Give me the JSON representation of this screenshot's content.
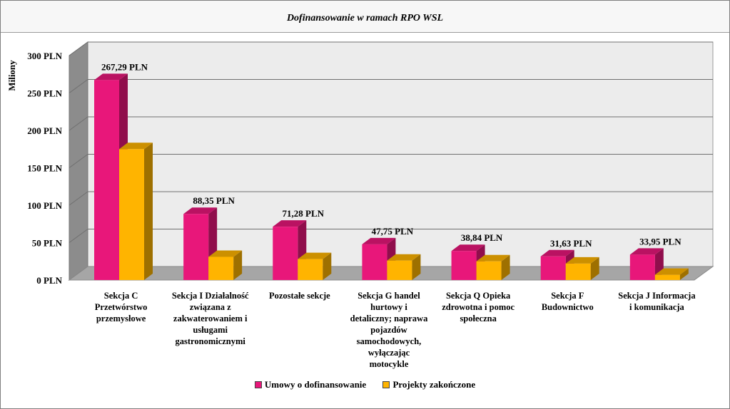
{
  "chart_data": {
    "type": "bar",
    "title": "Dofinansowanie w ramach RPO WSL",
    "ylabel": "Miliony",
    "xlabel": "",
    "ylim": [
      0,
      300
    ],
    "yticks": [
      0,
      50,
      100,
      150,
      200,
      250,
      300
    ],
    "ytick_labels": [
      "0 PLN",
      "50 PLN",
      "100 PLN",
      "150 PLN",
      "200 PLN",
      "250 PLN",
      "300 PLN"
    ],
    "grid": true,
    "legend_position": "bottom",
    "categories": [
      [
        "Sekcja C",
        "Przetwórstwo",
        "przemysłowe"
      ],
      [
        "Sekcja I Działalność",
        "związana z",
        "zakwaterowaniem i",
        "usługami",
        "gastronomicznymi"
      ],
      [
        "Pozostałe sekcje"
      ],
      [
        "Sekcja G handel",
        "hurtowy i",
        "detaliczny; naprawa",
        "pojazdów",
        "samochodowych,",
        "wyłączając",
        "motocykle"
      ],
      [
        "Sekcja Q Opieka",
        "zdrowotna i pomoc",
        "społeczna"
      ],
      [
        "Sekcja F",
        "Budownictwo"
      ],
      [
        "Sekcja J Informacja",
        "i komunikacja"
      ]
    ],
    "series": [
      {
        "name": "Umowy o dofinansowanie",
        "color": "#e8177a",
        "values": [
          267.29,
          88.35,
          71.28,
          47.75,
          38.84,
          31.63,
          33.95
        ],
        "data_labels": [
          "267,29 PLN",
          "88,35 PLN",
          "71,28 PLN",
          "47,75 PLN",
          "38,84 PLN",
          "31,63 PLN",
          "33,95 PLN"
        ]
      },
      {
        "name": "Projekty zakończone",
        "color": "#ffb400",
        "values": [
          175,
          31,
          28,
          26,
          25,
          22,
          7
        ]
      }
    ]
  }
}
